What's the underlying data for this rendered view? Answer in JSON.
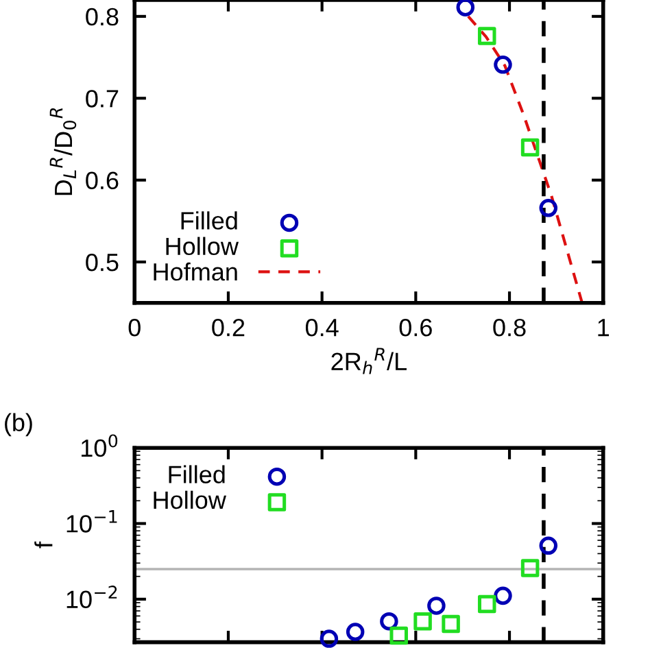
{
  "chart_data": [
    {
      "type": "scatter",
      "xlabel": "2R$_{h}$$^{R}$/L",
      "ylabel": "D$_{L}$$^{R}$/D$_{0}$$^{R}$",
      "xlim": [
        0,
        1
      ],
      "ylim": [
        0.45,
        0.82
      ],
      "xticks": [
        0,
        0.2,
        0.4,
        0.6,
        0.8,
        1
      ],
      "yticks": [
        0.5,
        0.6,
        0.7,
        0.8
      ],
      "grid": false,
      "legend": "bottom left",
      "series": [
        {
          "name": "Filled",
          "color": "#0000b4",
          "marker": "circle",
          "x": [
            0.706,
            0.786,
            0.883
          ],
          "values": [
            0.811,
            0.741,
            0.566
          ]
        },
        {
          "name": "Hollow",
          "color": "#22dd22",
          "marker": "square",
          "x": [
            0.752,
            0.844
          ],
          "values": [
            0.776,
            0.64
          ]
        },
        {
          "name": "Hofman",
          "type": "line",
          "color": "#dd1111",
          "line_style": "dashed",
          "marker": "none",
          "x": [
            0.712,
            0.75,
            0.79,
            0.83,
            0.86,
            0.89,
            0.92,
            0.955
          ],
          "values": [
            0.8,
            0.775,
            0.74,
            0.68,
            0.63,
            0.58,
            0.52,
            0.45
          ]
        }
      ],
      "ref_lines": [
        {
          "axis": "x",
          "value": 0.873,
          "color": "#000000",
          "line_style": "dashed"
        }
      ]
    },
    {
      "type": "scatter",
      "ylabel": "f",
      "log": "y",
      "xlim": [
        0,
        1
      ],
      "ylim": [
        0.0027,
        1
      ],
      "xticks": [
        0,
        0.2,
        0.4,
        0.6,
        0.8,
        1
      ],
      "yticks": [
        {
          "value": 0.01,
          "label": "10$^{−2}$"
        },
        {
          "value": 0.1,
          "label": "10$^{−1}$"
        },
        {
          "value": 1,
          "label": "10$^{0}$"
        }
      ],
      "tick_labels": "y",
      "grid": false,
      "legend": "top left",
      "annotations": [
        "(b)"
      ],
      "series": [
        {
          "name": "Filled",
          "color": "#0000b4",
          "marker": "circle",
          "x": [
            0.415,
            0.471,
            0.543,
            0.644,
            0.786,
            0.883
          ],
          "values": [
            0.003,
            0.0037,
            0.0051,
            0.0082,
            0.0111,
            0.051
          ]
        },
        {
          "name": "Hollow",
          "color": "#22dd22",
          "marker": "square",
          "x": [
            0.564,
            0.615,
            0.675,
            0.752,
            0.844
          ],
          "values": [
            0.0033,
            0.0051,
            0.0047,
            0.0086,
            0.0258
          ]
        }
      ],
      "ref_lines": [
        {
          "axis": "x",
          "value": 0.873,
          "color": "#000000",
          "line_style": "dashed"
        },
        {
          "axis": "y",
          "value": 0.025,
          "color": "#b4b4b4",
          "line_style": "solid"
        }
      ]
    }
  ]
}
